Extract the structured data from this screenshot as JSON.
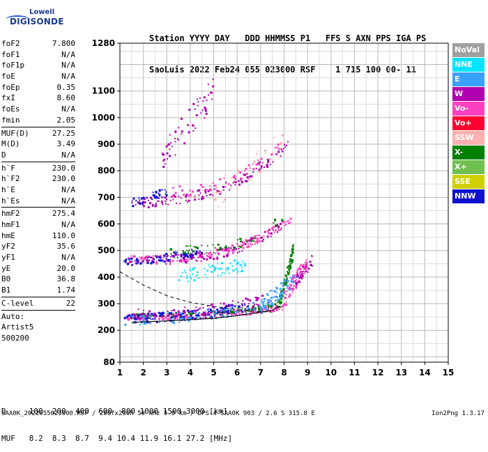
{
  "logo": {
    "line1": "Lowell",
    "line2": "DIGISONDE"
  },
  "header": {
    "line1": "Station YYYY DAY   DDD HHMMSS P1   FFS S AXN PPS IGA PS",
    "line2": "SaoLuis 2022 Feb24 055 023000 RSF    1 715 100 00- 11"
  },
  "params": {
    "group1": [
      {
        "k": "foF2",
        "v": "7.800"
      },
      {
        "k": "foF1",
        "v": "N/A"
      },
      {
        "k": "foF1p",
        "v": "N/A"
      },
      {
        "k": "foE",
        "v": "N/A"
      },
      {
        "k": "foEp",
        "v": "0.35"
      },
      {
        "k": "fxI",
        "v": "8.60"
      },
      {
        "k": "foEs",
        "v": "N/A"
      },
      {
        "k": "fmin",
        "v": "2.05"
      }
    ],
    "group2": [
      {
        "k": "MUF(D)",
        "v": "27.25"
      },
      {
        "k": "M(D)",
        "v": "3.49"
      },
      {
        "k": "D",
        "v": "N/A"
      }
    ],
    "group3": [
      {
        "k": "h`F",
        "v": "230.0"
      },
      {
        "k": "h`F2",
        "v": "230.0"
      },
      {
        "k": "h`E",
        "v": "N/A"
      },
      {
        "k": "h`Es",
        "v": "N/A"
      }
    ],
    "group4": [
      {
        "k": "hmF2",
        "v": "275.4"
      },
      {
        "k": "hmF1",
        "v": "N/A"
      },
      {
        "k": "hmE",
        "v": "110.0"
      },
      {
        "k": "yF2",
        "v": "35.6"
      },
      {
        "k": "yF1",
        "v": "N/A"
      },
      {
        "k": "yE",
        "v": "20.0"
      },
      {
        "k": "B0",
        "v": "36.8"
      },
      {
        "k": "B1",
        "v": "1.74"
      }
    ],
    "group5": [
      {
        "k": "C-level",
        "v": "22"
      }
    ],
    "auto": [
      "Auto:",
      "Artist5",
      "500200"
    ]
  },
  "legend": [
    {
      "label": "NoVal",
      "color": "#a0a0a0"
    },
    {
      "label": "NNE",
      "color": "#00e5ff"
    },
    {
      "label": "E",
      "color": "#3aa0ff"
    },
    {
      "label": "W",
      "color": "#b000b0"
    },
    {
      "label": "Vo-",
      "color": "#ff40c0"
    },
    {
      "label": "Vo+",
      "color": "#ff0030"
    },
    {
      "label": "SSW",
      "color": "#ffb0b0"
    },
    {
      "label": "X-",
      "color": "#008000"
    },
    {
      "label": "X+",
      "color": "#70c050"
    },
    {
      "label": "SSE",
      "color": "#d0d000"
    },
    {
      "label": "NNW",
      "color": "#1010d0"
    }
  ],
  "bottom": {
    "line1": "D     100  200  400  600  800 1000 1500 3000 [km]",
    "line2": "MUF   8.2  8.3  8.7  9.4 10.4 11.9 16.1 27.2 [MHz]"
  },
  "footer": {
    "file": "SAA0K_2022055023000.RSF / 280fx256h 50 kHz 5.0 km / DPS-4 SAA0K 903 / 2.6 S 315.8 E",
    "version": "Ion2Png 1.3.17"
  },
  "chart_data": {
    "type": "scatter",
    "xlabel": "",
    "ylabel": "",
    "xlim": [
      1,
      15
    ],
    "ylim": [
      80,
      1280
    ],
    "x_ticks": [
      "1",
      "2",
      "3",
      "4",
      "5",
      "6",
      "7",
      "8",
      "9",
      "10",
      "11",
      "12",
      "13",
      "14",
      "15"
    ],
    "y_ticks": [
      {
        "value": 80,
        "label": "80"
      },
      {
        "value": 200,
        "label": "200"
      },
      {
        "value": 300,
        "label": "300"
      },
      {
        "value": 400,
        "label": "400"
      },
      {
        "value": 500,
        "label": "500"
      },
      {
        "value": 600,
        "label": "600"
      },
      {
        "value": 700,
        "label": "700"
      },
      {
        "value": 800,
        "label": "800"
      },
      {
        "value": 900,
        "label": "900"
      },
      {
        "value": 1000,
        "label": "1000"
      },
      {
        "value": 1100,
        "label": "1100"
      },
      {
        "value": 1280,
        "label": "1280"
      }
    ],
    "grid": true,
    "profile_curve": [
      [
        1.5,
        230
      ],
      [
        3,
        235
      ],
      [
        5,
        245
      ],
      [
        6,
        255
      ],
      [
        7,
        268
      ],
      [
        7.5,
        275
      ],
      [
        7.8,
        290
      ]
    ],
    "dashed_curve": [
      [
        1,
        420
      ],
      [
        2,
        370
      ],
      [
        3,
        330
      ],
      [
        4,
        305
      ],
      [
        5,
        290
      ],
      [
        6,
        278
      ],
      [
        7,
        270
      ],
      [
        7.5,
        268
      ]
    ],
    "traces": [
      {
        "name": "F trace",
        "color": "#ff40c0",
        "x": [
          1.3,
          8.1
        ],
        "y": [
          250,
          290
        ],
        "curve": 2.5,
        "spread": 12,
        "n": 260
      },
      {
        "name": "F trace X",
        "color": "#008000",
        "x": [
          1.5,
          7.9
        ],
        "y": [
          255,
          300
        ],
        "curve": 2.5,
        "spread": 10,
        "n": 90
      },
      {
        "name": "F trace NNW",
        "color": "#1010d0",
        "x": [
          1.2,
          6.5
        ],
        "y": [
          245,
          290
        ],
        "curve": 2.0,
        "spread": 18,
        "n": 140
      },
      {
        "name": "F trace E",
        "color": "#3aa0ff",
        "x": [
          1.2,
          7.5
        ],
        "y": [
          240,
          300
        ],
        "curve": 2.0,
        "spread": 20,
        "n": 90
      },
      {
        "name": "F trace W",
        "color": "#b000b0",
        "x": [
          1.5,
          7.5
        ],
        "y": [
          260,
          320
        ],
        "curve": 2.0,
        "spread": 20,
        "n": 90
      },
      {
        "name": "2F trace",
        "color": "#ff40c0",
        "x": [
          1.3,
          8.3
        ],
        "y": [
          465,
          620
        ],
        "curve": 3.0,
        "spread": 15,
        "n": 180
      },
      {
        "name": "2F trace W",
        "color": "#b000b0",
        "x": [
          1.3,
          8.0
        ],
        "y": [
          460,
          600
        ],
        "curve": 3.0,
        "spread": 18,
        "n": 110
      },
      {
        "name": "2F trace NNW",
        "color": "#1010d0",
        "x": [
          1.2,
          4.5
        ],
        "y": [
          455,
          500
        ],
        "curve": 1.5,
        "spread": 15,
        "n": 80
      },
      {
        "name": "2F trace X",
        "color": "#008000",
        "x": [
          3.0,
          8.2
        ],
        "y": [
          500,
          640
        ],
        "curve": 3.0,
        "spread": 18,
        "n": 50
      },
      {
        "name": "3F trace",
        "color": "#b000b0",
        "x": [
          1.5,
          8.2
        ],
        "y": [
          680,
          900
        ],
        "curve": 2.5,
        "spread": 20,
        "n": 140
      },
      {
        "name": "3F trace Vo",
        "color": "#ff40c0",
        "x": [
          3.0,
          8.0
        ],
        "y": [
          720,
          930
        ],
        "curve": 2.5,
        "spread": 22,
        "n": 60
      },
      {
        "name": "3F trace NNW",
        "color": "#1010d0",
        "x": [
          1.5,
          3.0
        ],
        "y": [
          680,
          720
        ],
        "curve": 1.0,
        "spread": 15,
        "n": 40
      },
      {
        "name": "F cusp",
        "color": "#008000",
        "x": [
          7.8,
          8.4
        ],
        "y": [
          300,
          500
        ],
        "curve": 1.0,
        "spread": 25,
        "n": 90
      },
      {
        "name": "F cusp E",
        "color": "#3aa0ff",
        "x": [
          7.0,
          8.6
        ],
        "y": [
          290,
          400
        ],
        "curve": 1.0,
        "spread": 30,
        "n": 80
      },
      {
        "name": "F cusp Vo",
        "color": "#ff40c0",
        "x": [
          8.0,
          9.0
        ],
        "y": [
          320,
          460
        ],
        "curve": 1.0,
        "spread": 30,
        "n": 70
      },
      {
        "name": "F cusp W",
        "color": "#b000b0",
        "x": [
          8.5,
          9.2
        ],
        "y": [
          380,
          460
        ],
        "curve": 1.0,
        "spread": 25,
        "n": 40
      },
      {
        "name": "Oblique NNE",
        "color": "#00e5ff",
        "x": [
          3.5,
          6.5
        ],
        "y": [
          400,
          450
        ],
        "curve": 1.0,
        "spread": 25,
        "n": 70
      },
      {
        "name": "Oblique W high",
        "color": "#b000b0",
        "x": [
          2.8,
          5.0
        ],
        "y": [
          850,
          1100
        ],
        "curve": 1.0,
        "spread": 60,
        "n": 60
      },
      {
        "name": "Scatter SSW",
        "color": "#ffb0b0",
        "x": [
          5.0,
          8.0
        ],
        "y": [
          700,
          900
        ],
        "curve": 1.0,
        "spread": 60,
        "n": 30
      }
    ]
  }
}
